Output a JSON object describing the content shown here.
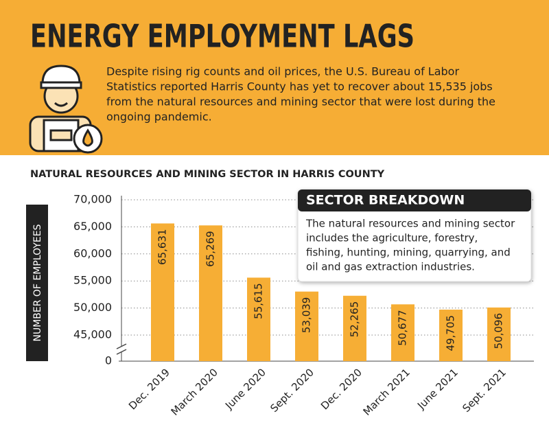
{
  "header": {
    "title": "ENERGY EMPLOYMENT LAGS",
    "intro_lines": [
      "Despite rising rig counts and oil prices, the U.S. Bureau of Labor",
      "Statistics reported Harris County has yet to recover about 15,535 jobs",
      "from the natural resources and mining sector that were lost during the",
      "ongoing pandemic."
    ]
  },
  "chart_data": {
    "type": "bar",
    "title": "NATURAL RESOURCES AND MINING SECTOR IN HARRIS COUNTY",
    "ylabel": "NUMBER OF EMPLOYEES",
    "categories": [
      "Dec. 2019",
      "March 2020",
      "June 2020",
      "Sept. 2020",
      "Dec. 2020",
      "March 2021",
      "June 2021",
      "Sept. 2021"
    ],
    "values": [
      65631,
      65269,
      55615,
      53039,
      52265,
      50677,
      49705,
      50096
    ],
    "value_labels": [
      "65,631",
      "65,269",
      "55,615",
      "53,039",
      "52,265",
      "50,677",
      "49,705",
      "50,096"
    ],
    "color": "#f6ae35",
    "ylim": [
      0,
      70000
    ],
    "yticks": [
      0,
      {
        "value": 45000,
        "label": "45,000"
      },
      {
        "value": 50000,
        "label": "50,000"
      },
      {
        "value": 55000,
        "label": "55,000"
      },
      {
        "value": 60000,
        "label": "60,000"
      },
      {
        "value": 65000,
        "label": "65,000"
      },
      {
        "value": 70000,
        "label": "70,000"
      }
    ],
    "ybreak": true,
    "grid": true,
    "annotation": {
      "title": "SECTOR BREAKDOWN",
      "lines": [
        "The natural resources and mining sector",
        "includes the agriculture, forestry,",
        "fishing, hunting, mining, quarrying, and",
        "oil and gas extraction industries."
      ]
    }
  }
}
